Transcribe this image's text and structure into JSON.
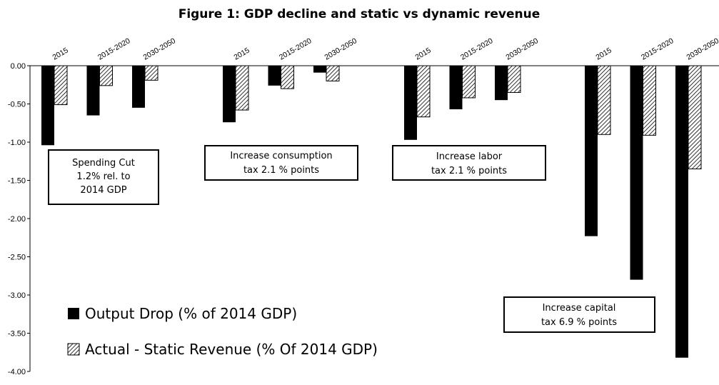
{
  "chart_data": {
    "type": "bar",
    "title": "Figure 1: GDP decline and static vs dynamic revenue",
    "ylim": [
      -4.0,
      0.0
    ],
    "yticks": [
      "0.00",
      "-0.50",
      "-1.00",
      "-1.50",
      "-2.00",
      "-2.50",
      "-3.00",
      "-3.50",
      "-4.00"
    ],
    "ytick_values": [
      0,
      -0.5,
      -1.0,
      -1.5,
      -2.0,
      -2.5,
      -3.0,
      -3.5,
      -4.0
    ],
    "categories": [
      "2015",
      "2015-2020",
      "2030-2050",
      "2015",
      "2015-2020",
      "2030-2050",
      "2015",
      "2015-2020",
      "2030-2050",
      "2015",
      "2015-2020",
      "2030-2050"
    ],
    "series": [
      {
        "name": "Output Drop (% of 2014 GDP)",
        "color": "#000000",
        "values": [
          -1.04,
          -0.65,
          -0.55,
          -0.74,
          -0.26,
          -0.09,
          -0.97,
          -0.57,
          -0.45,
          -2.23,
          -2.8,
          -3.82
        ]
      },
      {
        "name": "Actual - Static Revenue (% Of 2014 GDP)",
        "color": "hatched",
        "values": [
          -0.51,
          -0.26,
          -0.19,
          -0.58,
          -0.3,
          -0.2,
          -0.67,
          -0.42,
          -0.35,
          -0.9,
          -0.91,
          -1.35
        ]
      }
    ],
    "groups": [
      {
        "label_lines": [
          "Spending Cut",
          "1.2% rel. to",
          "2014 GDP"
        ]
      },
      {
        "label_lines": [
          "Increase consumption",
          "tax 2.1 % points"
        ]
      },
      {
        "label_lines": [
          "Increase labor",
          "tax 2.1 % points"
        ]
      },
      {
        "label_lines": [
          "Increase capital",
          "tax 6.9 % points"
        ]
      }
    ],
    "legend_position": "bottom-left",
    "grid": false
  }
}
